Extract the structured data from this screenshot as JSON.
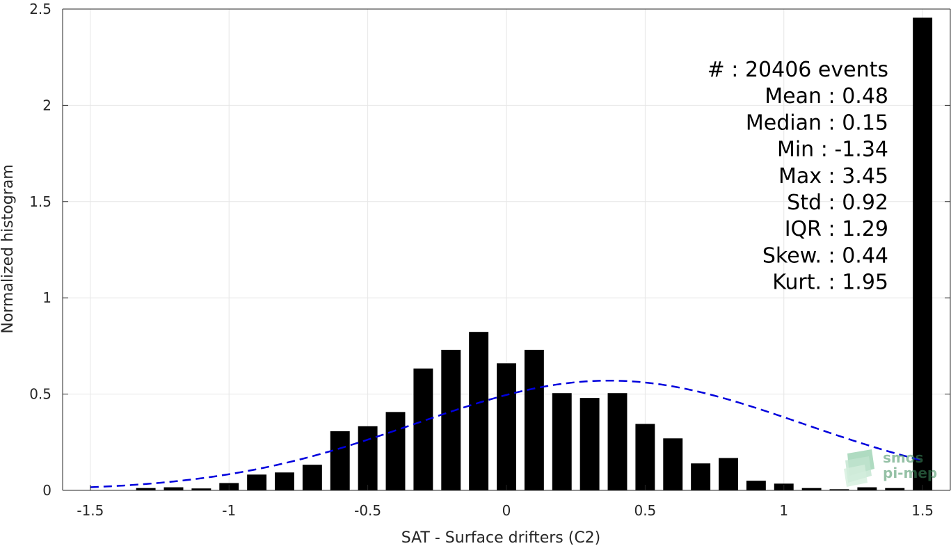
{
  "chart_data": {
    "type": "bar",
    "xlabel": "SAT - Surface drifters (C2)",
    "ylabel": "Normalized histogram",
    "xlim": [
      -1.6,
      1.6
    ],
    "ylim": [
      0,
      2.5
    ],
    "x_ticks": [
      "-1.5",
      "-1",
      "-0.5",
      "0",
      "0.5",
      "1",
      "1.5"
    ],
    "x_tick_values": [
      -1.5,
      -1,
      -0.5,
      0,
      0.5,
      1,
      1.5
    ],
    "y_ticks": [
      "0",
      "0.5",
      "1",
      "1.5",
      "2",
      "2.5"
    ],
    "y_tick_values": [
      0,
      0.5,
      1,
      1.5,
      2,
      2.5
    ],
    "grid": true,
    "bar_color": "#000000",
    "bars": {
      "x": [
        -1.3,
        -1.2,
        -1.1,
        -1.0,
        -0.9,
        -0.8,
        -0.7,
        -0.6,
        -0.5,
        -0.4,
        -0.3,
        -0.2,
        -0.1,
        0.0,
        0.1,
        0.2,
        0.3,
        0.4,
        0.5,
        0.6,
        0.7,
        0.8,
        0.9,
        1.0,
        1.1,
        1.2,
        1.3,
        1.4,
        1.5
      ],
      "values": [
        0.012,
        0.016,
        0.01,
        0.038,
        0.082,
        0.093,
        0.133,
        0.307,
        0.333,
        0.407,
        0.633,
        0.73,
        0.823,
        0.66,
        0.73,
        0.505,
        0.48,
        0.505,
        0.345,
        0.27,
        0.14,
        0.168,
        0.05,
        0.035,
        0.012,
        0.006,
        0.016,
        0.012,
        2.455
      ]
    },
    "gaussian_fit": {
      "color": "#0000dd",
      "style": "dashed",
      "mean": 0.37,
      "std": 0.7,
      "x_range": [
        -1.5,
        1.5
      ]
    },
    "annotations": [
      "#  : 20406 events",
      "Mean : 0.48",
      "Median : 0.15",
      "Min : -1.34",
      "Max : 3.45",
      "Std : 0.92",
      "IQR : 1.29",
      "Skew. : 0.44",
      "Kurt. : 1.95"
    ]
  },
  "watermark": {
    "line1": "smos",
    "line2": "pi-mep",
    "color": "#3f8f5f"
  }
}
